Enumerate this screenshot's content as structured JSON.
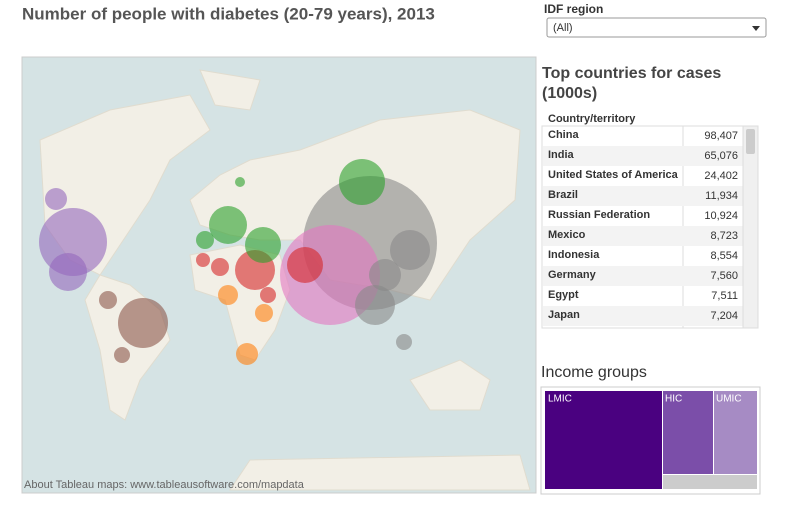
{
  "header": {
    "title": "Number of people with diabetes (20-79 years), 2013"
  },
  "filter": {
    "label": "IDF region",
    "selected": "(All)"
  },
  "map": {
    "attribution": "About Tableau maps: www.tableausoftware.com/mapdata"
  },
  "table": {
    "title": "Top countries for cases (1000s)",
    "column": "Country/territory",
    "rows": [
      [
        "China",
        "98,407"
      ],
      [
        "India",
        "65,076"
      ],
      [
        "United States of America",
        "24,402"
      ],
      [
        "Brazil",
        "11,934"
      ],
      [
        "Russian Federation",
        "10,924"
      ],
      [
        "Mexico",
        "8,723"
      ],
      [
        "Indonesia",
        "8,554"
      ],
      [
        "Germany",
        "7,560"
      ],
      [
        "Egypt",
        "7,511"
      ],
      [
        "Japan",
        "7,204"
      ]
    ]
  },
  "income": {
    "title": "Income groups",
    "groups": [
      "LMIC",
      "HIC",
      "UMIC"
    ]
  }
}
